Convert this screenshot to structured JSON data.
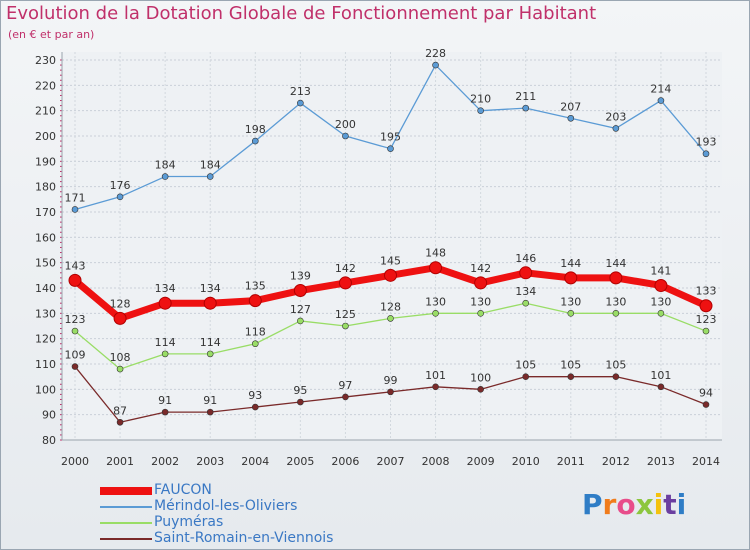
{
  "title": "Evolution de la Dotation Globale de Fonctionnement par Habitant",
  "subtitle": "(en € et par an)",
  "logo": {
    "text": "Proxiti",
    "letter_colors": [
      "#2f7dc6",
      "#f07c1c",
      "#e84d8a",
      "#8cc63e",
      "#f4c20d",
      "#6b3fa0",
      "#2f7dc6"
    ]
  },
  "chart_data": {
    "type": "line",
    "categories": [
      "2000",
      "2001",
      "2002",
      "2003",
      "2004",
      "2005",
      "2006",
      "2007",
      "2008",
      "2009",
      "2010",
      "2011",
      "2012",
      "2013",
      "2014"
    ],
    "ylim": [
      80,
      230
    ],
    "yticks": [
      80,
      90,
      100,
      110,
      120,
      130,
      140,
      150,
      160,
      170,
      180,
      190,
      200,
      210,
      220,
      230
    ],
    "grid": true,
    "legend_placement": "bottom-left",
    "series": [
      {
        "name": "FAUCON",
        "color": "#ee1111",
        "emphasis": true,
        "values": [
          143,
          128,
          134,
          134,
          135,
          139,
          142,
          145,
          148,
          142,
          146,
          144,
          144,
          141,
          133
        ]
      },
      {
        "name": "Mérindol-les-Oliviers",
        "color": "#5b9bd5",
        "emphasis": false,
        "values": [
          171,
          176,
          184,
          184,
          198,
          213,
          200,
          195,
          228,
          210,
          211,
          207,
          203,
          214,
          193
        ]
      },
      {
        "name": "Puyméras",
        "color": "#99dd66",
        "emphasis": false,
        "values": [
          123,
          108,
          114,
          114,
          118,
          127,
          125,
          128,
          130,
          130,
          134,
          130,
          130,
          130,
          123
        ]
      },
      {
        "name": "Saint-Romain-en-Viennois",
        "color": "#7a2a2a",
        "emphasis": false,
        "values": [
          109,
          87,
          91,
          91,
          93,
          95,
          97,
          99,
          101,
          100,
          105,
          105,
          105,
          101,
          94
        ]
      }
    ]
  }
}
